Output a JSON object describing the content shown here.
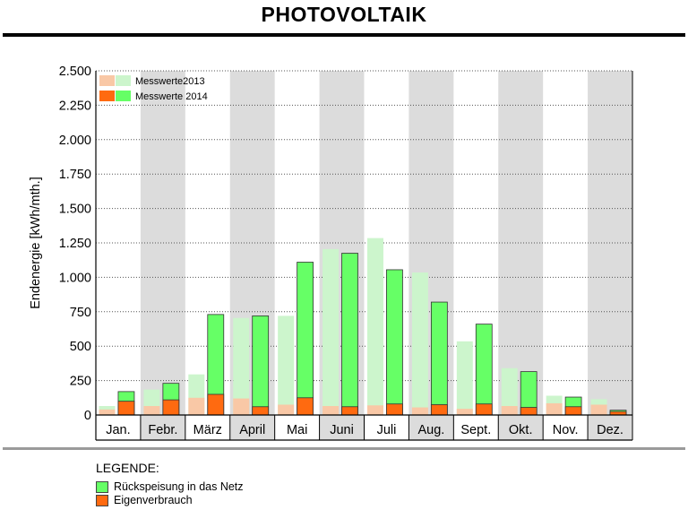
{
  "title": "PHOTOVOLTAIK",
  "chart_data": {
    "type": "bar",
    "stacked": true,
    "grouped": true,
    "categories": [
      "Jan.",
      "Febr.",
      "März",
      "April",
      "Mai",
      "Juni",
      "Juli",
      "Aug.",
      "Sept.",
      "Okt.",
      "Nov.",
      "Dez."
    ],
    "ylabel": "Endenergie [kWh/mth.]",
    "ylim": [
      0,
      2500
    ],
    "yticks": [
      0,
      250,
      500,
      750,
      1000,
      1250,
      1500,
      1750,
      2000,
      2250,
      2500
    ],
    "ytick_labels": [
      "0",
      "250",
      "500",
      "750",
      "1.000",
      "1.250",
      "1.500",
      "1.750",
      "2.000",
      "2.250",
      "2.500"
    ],
    "grid": true,
    "series": [
      {
        "name": "Messwerte2013",
        "eigenverbrauch": [
          40,
          65,
          125,
          120,
          75,
          65,
          70,
          55,
          45,
          65,
          85,
          75
        ],
        "total": [
          65,
          185,
          295,
          705,
          720,
          1205,
          1285,
          1035,
          535,
          340,
          140,
          115
        ]
      },
      {
        "name": "Messwerte 2014",
        "eigenverbrauch": [
          100,
          110,
          150,
          60,
          125,
          60,
          80,
          75,
          80,
          55,
          60,
          25
        ],
        "total": [
          170,
          230,
          730,
          720,
          1110,
          1175,
          1055,
          820,
          660,
          315,
          130,
          35
        ]
      }
    ],
    "inner_legend": [
      {
        "label": "Messwerte2013"
      },
      {
        "label": "Messwerte 2014"
      }
    ],
    "legend_placement": "top-left",
    "colors": {
      "rueck_2013": "#ccf5cc",
      "eigen_2013": "#f9c8a6",
      "rueck_2014": "#66ff66",
      "eigen_2014": "#ff6a10",
      "band": "#dcdcdc"
    }
  },
  "legend": {
    "title": "LEGENDE:",
    "items": [
      {
        "label": "Rückspeisung in das Netz",
        "color": "#66ff66"
      },
      {
        "label": "Eigenverbrauch",
        "color": "#ff6a10"
      }
    ]
  }
}
